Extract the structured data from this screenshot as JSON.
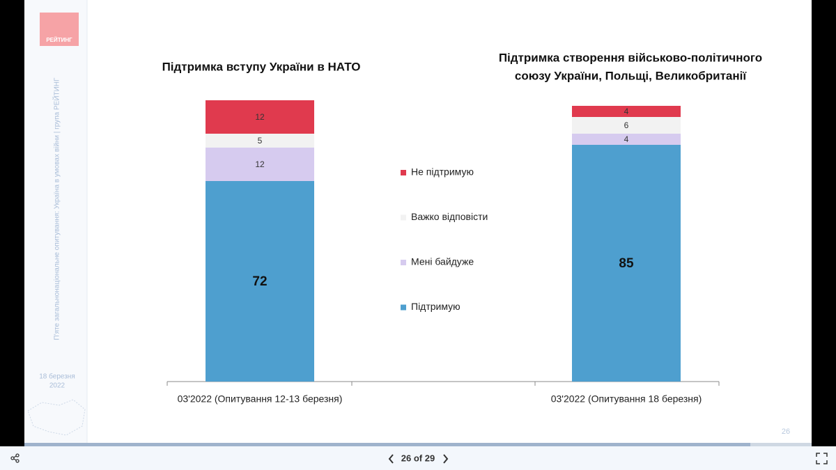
{
  "sidebar": {
    "logo": "РЕЙТИНГ",
    "vertical_text": "П'яте загальнонаціональне опитування: Україна в умовах війни | група РЕЙТИНГ",
    "date": [
      "18 березня",
      "2022"
    ]
  },
  "slide_number": "26",
  "viewer": {
    "page_label": "26 of 29"
  },
  "chart_data": {
    "type": "bar",
    "stacked": true,
    "titles": [
      [
        "Підтримка вступу України в НАТО"
      ],
      [
        "Підтримка створення військово-політичного",
        "союзу України, Польщі, Великобританії"
      ]
    ],
    "categories": [
      "03'2022 (Опитування 12-13 березня)",
      "03'2022 (Опитування 18 березня)"
    ],
    "series": [
      {
        "name": "Підтримую",
        "color": "#4e9fcf",
        "values": [
          72,
          85
        ]
      },
      {
        "name": "Мені байдуже",
        "color": "#d6cbef",
        "values": [
          12,
          4
        ]
      },
      {
        "name": "Важко відповісти",
        "color": "#f2f2f2",
        "values": [
          5,
          6
        ]
      },
      {
        "name": "Не підтримую",
        "color": "#e03a4e",
        "values": [
          12,
          4
        ]
      }
    ]
  }
}
